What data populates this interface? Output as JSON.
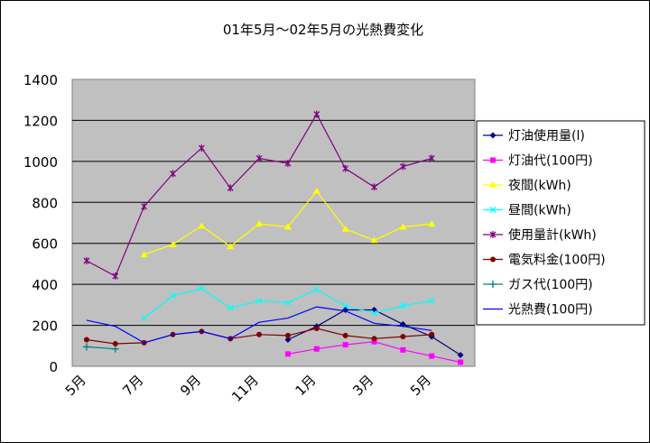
{
  "chart_data": {
    "type": "line",
    "title": "01年5月～02年5月の光熱費変化",
    "xlabel": "",
    "ylabel": "",
    "ylim": [
      0,
      1400
    ],
    "yticks": [
      "0",
      "200",
      "400",
      "600",
      "800",
      "1000",
      "1200",
      "1400"
    ],
    "x_tick_labels": [
      "5月",
      "7月",
      "9月",
      "11月",
      "1月",
      "3月",
      "5月"
    ],
    "grid": true,
    "legend_position": "right",
    "plot_background": "#c0c0c0",
    "series": [
      {
        "name": "灯油使用量(l)",
        "color": "#000080",
        "marker": "diamond",
        "values": [
          null,
          null,
          null,
          null,
          null,
          null,
          null,
          130,
          195,
          275,
          275,
          205,
          145,
          55
        ]
      },
      {
        "name": "灯油代(100円)",
        "color": "#ff00ff",
        "marker": "square",
        "values": [
          null,
          null,
          null,
          null,
          null,
          null,
          null,
          60,
          85,
          105,
          120,
          80,
          50,
          20
        ]
      },
      {
        "name": "夜間(kWh)",
        "color": "#ffff00",
        "marker": "triangle",
        "values": [
          null,
          null,
          545,
          595,
          685,
          585,
          695,
          680,
          855,
          670,
          615,
          680,
          695,
          null
        ]
      },
      {
        "name": "昼間(kWh)",
        "color": "#00ffff",
        "marker": "x",
        "values": [
          null,
          null,
          235,
          345,
          380,
          285,
          320,
          310,
          375,
          295,
          260,
          295,
          320,
          null
        ]
      },
      {
        "name": "使用量計(kWh)",
        "color": "#800080",
        "marker": "star",
        "values": [
          515,
          440,
          780,
          940,
          1065,
          870,
          1015,
          990,
          1230,
          965,
          875,
          975,
          1015,
          null
        ]
      },
      {
        "name": "電気料金(100円)",
        "color": "#800000",
        "marker": "circle",
        "values": [
          130,
          110,
          115,
          155,
          170,
          135,
          155,
          150,
          185,
          150,
          135,
          145,
          155,
          null
        ]
      },
      {
        "name": "ガス代(100円)",
        "color": "#008080",
        "marker": "plus",
        "values": [
          95,
          85,
          null,
          null,
          null,
          null,
          null,
          null,
          null,
          null,
          null,
          null,
          null,
          null
        ]
      },
      {
        "name": "光熱費(100円)",
        "color": "#0000ff",
        "marker": "none",
        "values": [
          225,
          195,
          115,
          155,
          170,
          135,
          215,
          235,
          290,
          270,
          210,
          195,
          175,
          null
        ]
      }
    ]
  }
}
